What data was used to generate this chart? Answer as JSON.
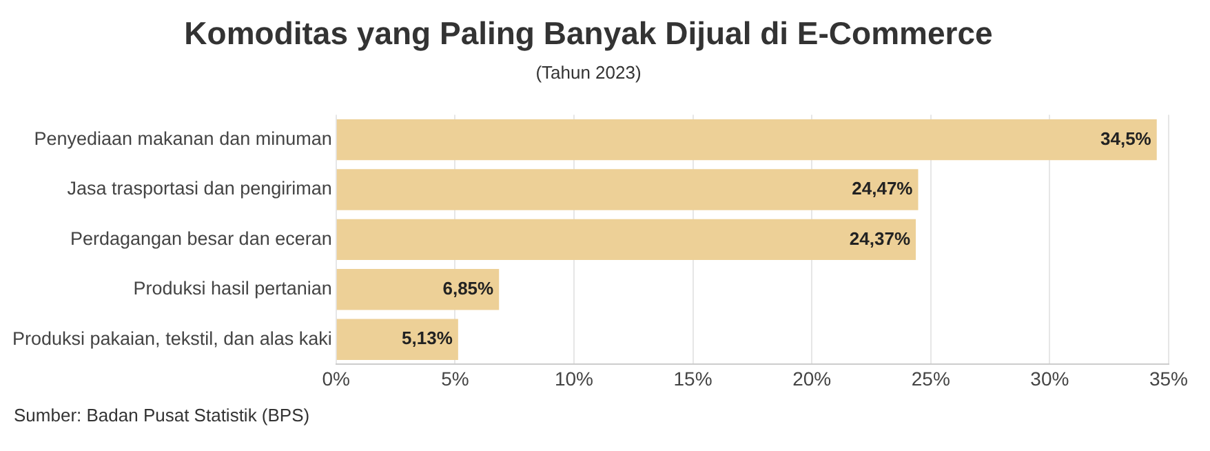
{
  "chart_data": {
    "type": "bar",
    "orientation": "horizontal",
    "title": "Komoditas yang Paling Banyak Dijual di E-Commerce",
    "subtitle": "(Tahun 2023)",
    "categories": [
      "Penyediaan makanan dan minuman",
      "Jasa trasportasi dan pengiriman",
      "Perdagangan besar dan eceran",
      "Produksi hasil pertanian",
      "Produksi pakaian, tekstil, dan alas kaki"
    ],
    "values": [
      34.5,
      24.47,
      24.37,
      6.85,
      5.13
    ],
    "value_labels": [
      "34,5%",
      "24,47%",
      "24,37%",
      "6,85%",
      "5,13%"
    ],
    "color": "#edd097",
    "xlim": [
      0,
      35
    ],
    "xticks": [
      {
        "value": 0,
        "label": "0%"
      },
      {
        "value": 5,
        "label": "5%"
      },
      {
        "value": 10,
        "label": "10%"
      },
      {
        "value": 15,
        "label": "15%"
      },
      {
        "value": 20,
        "label": "20%"
      },
      {
        "value": 25,
        "label": "25%"
      },
      {
        "value": 30,
        "label": "30%"
      },
      {
        "value": 35,
        "label": "35%"
      }
    ],
    "grid": "x",
    "annotations": [
      "Sumber: Badan Pusat Statistik (BPS)"
    ]
  }
}
